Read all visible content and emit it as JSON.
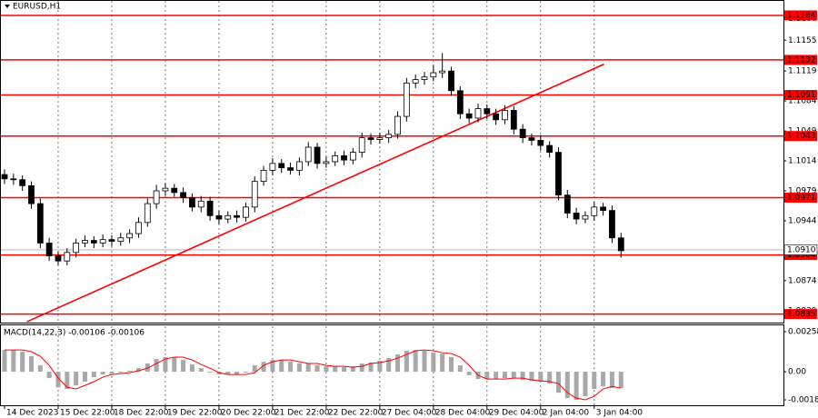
{
  "chart_data": [
    {
      "type": "candlestick",
      "title": "EURUSD,H1",
      "categories": [
        "14 Dec 2023",
        null,
        null,
        null,
        null,
        null,
        "15 Dec 22:00",
        null,
        null,
        null,
        null,
        null,
        "18 Dec 22:00",
        null,
        null,
        null,
        null,
        null,
        "19 Dec 22:00",
        null,
        null,
        null,
        null,
        null,
        "20 Dec 22:00",
        null,
        null,
        null,
        null,
        null,
        "21 Dec 22:00",
        null,
        null,
        null,
        null,
        null,
        "22 Dec 22:00",
        null,
        null,
        null,
        null,
        null,
        "27 Dec 04:00",
        null,
        null,
        null,
        null,
        null,
        "28 Dec 04:00",
        null,
        null,
        null,
        null,
        null,
        "29 Dec 04:00",
        null,
        null,
        null,
        null,
        null,
        "2 Jan 04:00",
        null,
        null,
        null,
        null,
        null,
        "3 Jan 04:00",
        null,
        null,
        null
      ],
      "open": [
        1.0998,
        1.0993,
        1.0992,
        1.0985,
        1.0964,
        1.0918,
        1.0903,
        1.0897,
        1.0907,
        1.0918,
        1.0921,
        1.0918,
        1.0922,
        1.092,
        1.0924,
        1.0929,
        1.0942,
        1.0964,
        1.0979,
        1.0982,
        1.0977,
        1.0971,
        1.096,
        1.0967,
        1.095,
        1.0946,
        1.095,
        1.0948,
        1.096,
        1.099,
        1.1003,
        1.1011,
        1.1006,
        1.1003,
        1.1013,
        1.103,
        1.1011,
        1.1013,
        1.102,
        1.1015,
        1.1024,
        1.1041,
        1.1039,
        1.1041,
        1.1045,
        1.1066,
        1.1105,
        1.1109,
        1.1112,
        1.1117,
        1.1119,
        1.1096,
        1.1069,
        1.1064,
        1.1075,
        1.1069,
        1.1062,
        1.1073,
        1.1051,
        1.1041,
        1.1038,
        1.1032,
        1.1024,
        1.0974,
        1.0953,
        1.0946,
        1.095,
        1.096,
        1.0956,
        1.0924
      ],
      "high": [
        1.1004,
        1.0999,
        1.0997,
        1.099,
        1.097,
        1.0924,
        1.0908,
        1.0912,
        1.0923,
        1.0927,
        1.0926,
        1.0928,
        1.0927,
        1.093,
        1.0934,
        1.0948,
        1.097,
        1.0986,
        1.0988,
        1.0987,
        1.0983,
        1.0976,
        1.0973,
        1.0972,
        1.0956,
        1.0955,
        1.0956,
        1.0965,
        1.0996,
        1.1008,
        1.1017,
        1.1016,
        1.1012,
        1.1018,
        1.1036,
        1.1035,
        1.1019,
        1.1025,
        1.1026,
        1.1029,
        1.1047,
        1.1046,
        1.1047,
        1.105,
        1.1072,
        1.1111,
        1.1115,
        1.1118,
        1.1126,
        1.114,
        1.1124,
        1.1101,
        1.1075,
        1.1081,
        1.108,
        1.1075,
        1.1079,
        1.1078,
        1.1057,
        1.1046,
        1.1044,
        1.1037,
        1.103,
        1.098,
        1.0959,
        1.0955,
        1.0966,
        1.0965,
        1.0962,
        1.093
      ],
      "low": [
        1.0987,
        1.0986,
        1.0979,
        1.0958,
        1.0912,
        1.0897,
        1.0892,
        1.0892,
        1.0901,
        1.0913,
        1.0912,
        1.0913,
        1.0914,
        1.0915,
        1.0918,
        1.0924,
        1.0937,
        1.0958,
        1.0973,
        1.0972,
        1.0965,
        1.0955,
        1.0954,
        1.0944,
        1.094,
        1.0941,
        1.0942,
        1.0943,
        1.0954,
        1.0985,
        1.0997,
        1.1,
        1.0998,
        1.0997,
        1.1008,
        1.1005,
        1.1006,
        1.1008,
        1.1009,
        1.101,
        1.1018,
        1.1033,
        1.1034,
        1.1035,
        1.104,
        1.106,
        1.1099,
        1.1103,
        1.1107,
        1.1111,
        1.109,
        1.1063,
        1.1058,
        1.1059,
        1.1063,
        1.1056,
        1.1057,
        1.1045,
        1.1035,
        1.1032,
        1.1026,
        1.1018,
        1.0968,
        1.0947,
        1.094,
        1.0941,
        1.0944,
        1.095,
        1.0918,
        1.0901
      ],
      "close": [
        1.0993,
        1.0992,
        1.0985,
        1.0964,
        1.0918,
        1.0903,
        1.0897,
        1.0907,
        1.0918,
        1.0921,
        1.0918,
        1.0922,
        1.092,
        1.0924,
        1.0929,
        1.0942,
        1.0964,
        1.0979,
        1.0982,
        1.0977,
        1.0971,
        1.096,
        1.0967,
        1.095,
        1.0946,
        1.095,
        1.0948,
        1.096,
        1.099,
        1.1003,
        1.1011,
        1.1006,
        1.1003,
        1.1013,
        1.103,
        1.1011,
        1.1013,
        1.102,
        1.1015,
        1.1024,
        1.1041,
        1.1039,
        1.1041,
        1.1045,
        1.1066,
        1.1105,
        1.1109,
        1.1112,
        1.1117,
        1.1119,
        1.1096,
        1.1069,
        1.1064,
        1.1075,
        1.1069,
        1.1062,
        1.1073,
        1.1051,
        1.1041,
        1.1038,
        1.1032,
        1.1024,
        1.0974,
        1.0953,
        1.0946,
        1.095,
        1.096,
        1.0956,
        1.0924,
        1.0909
      ],
      "color": "#000000",
      "ylim": [
        1.0825,
        1.1202
      ],
      "yticks": [
        {
          "value": 1.118,
          "label": "1.1180"
        },
        1.1155,
        1.1119,
        1.1084,
        1.1049,
        1.1014,
        1.0979,
        1.0944,
        1.0874,
        1.0839
      ],
      "levels": {
        "color": "#ff0000",
        "values": [
          1.1184,
          1.1132,
          1.1091,
          1.1043,
          1.0971,
          1.0904,
          1.0835
        ]
      },
      "current_price": {
        "value": 1.091,
        "label": "1.0910"
      },
      "trendline": {
        "color": "#ff0000",
        "x": [
          2.5,
          67.1
        ],
        "y": [
          1.0826,
          1.1127
        ]
      },
      "grid": true
    },
    {
      "type": "macd",
      "title": "MACD(14,22,3) -0.00106 -0.00106",
      "histogram": {
        "color": "#a8a8a8",
        "values": [
          0.0014,
          0.0014,
          0.00129,
          0.001,
          0.00041,
          -0.00041,
          -0.001,
          -0.00111,
          -0.00088,
          -0.00064,
          -0.00035,
          -0.00018,
          -0.00012,
          -6e-05,
          6e-05,
          0.00023,
          0.00053,
          0.00082,
          0.00094,
          0.00094,
          0.00076,
          0.00047,
          0.00023,
          -6e-05,
          -0.00018,
          -0.00018,
          -0.00018,
          -6e-05,
          0.00041,
          0.00064,
          0.00076,
          0.00076,
          0.00064,
          0.00053,
          0.00053,
          0.00041,
          0.00035,
          0.00035,
          0.00029,
          0.00035,
          0.00053,
          0.00059,
          0.0007,
          0.00088,
          0.00111,
          0.00135,
          0.0014,
          0.00135,
          0.00123,
          0.00117,
          0.00094,
          0.00041,
          -0.00023,
          -0.00047,
          -0.00047,
          -0.00047,
          -0.00041,
          -0.00041,
          -0.00053,
          -0.00059,
          -0.00064,
          -0.00076,
          -0.00135,
          -0.0017,
          -0.00181,
          -0.00158,
          -0.00111,
          -0.00094,
          -0.00105,
          -0.00106
        ]
      },
      "signal": {
        "color": "#ff0000",
        "values": [
          0.0014,
          0.0014,
          0.0014,
          0.00129,
          0.001,
          0.00041,
          -0.00041,
          -0.001,
          -0.00111,
          -0.00088,
          -0.00064,
          -0.00035,
          -0.00018,
          -0.00012,
          -6e-05,
          6e-05,
          0.00023,
          0.00053,
          0.00082,
          0.00094,
          0.00094,
          0.00076,
          0.00047,
          0.00023,
          -6e-05,
          -0.00018,
          -0.00018,
          -0.00018,
          -6e-05,
          0.00041,
          0.00064,
          0.00076,
          0.00076,
          0.00064,
          0.00053,
          0.00053,
          0.00041,
          0.00035,
          0.00035,
          0.00029,
          0.00035,
          0.00053,
          0.00059,
          0.0007,
          0.00088,
          0.00111,
          0.00135,
          0.0014,
          0.00135,
          0.00123,
          0.00117,
          0.00094,
          0.00041,
          -0.00023,
          -0.00047,
          -0.00047,
          -0.00047,
          -0.00041,
          -0.00041,
          -0.00053,
          -0.00059,
          -0.00064,
          -0.00076,
          -0.00135,
          -0.0017,
          -0.00181,
          -0.00158,
          -0.00111,
          -0.00094,
          -0.00106
        ]
      },
      "ylim": [
        -0.00222,
        0.00299
      ],
      "yticks": [
        0.00258,
        {
          "value": 0,
          "label": "0.00"
        },
        -0.00181
      ]
    }
  ]
}
